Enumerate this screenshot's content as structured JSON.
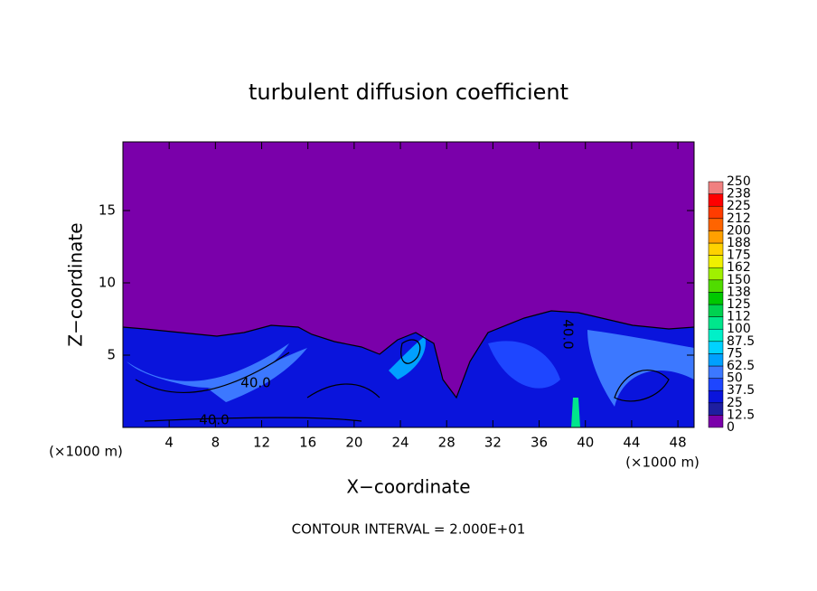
{
  "chart_data": {
    "type": "contour",
    "title": "turbulent diffusion coefficient",
    "xlabel": "X−coordinate",
    "ylabel": "Z−coordinate",
    "xunit": "(×1000 m)",
    "yunit": "(×1000 m)",
    "xlim": [
      0,
      49.4
    ],
    "ylim": [
      0,
      19.75
    ],
    "xticks": [
      4,
      8,
      12,
      16,
      20,
      24,
      28,
      32,
      36,
      40,
      44,
      48
    ],
    "yticks": [
      5,
      10,
      15
    ],
    "contour_labels": [
      "40.0",
      "40.0",
      "40.0"
    ],
    "note": "CONTOUR INTERVAL = 2.000E+01",
    "levels": [
      0,
      12.5,
      25,
      37.5,
      50,
      62.5,
      75,
      87.5,
      100,
      {
        "value": 112.5,
        "label": "112"
      },
      125,
      {
        "value": 137.5,
        "label": "138"
      },
      150,
      {
        "value": 162.5,
        "label": "162"
      },
      175,
      {
        "value": 187.5,
        "label": "188"
      },
      200,
      {
        "value": 212.5,
        "label": "212"
      },
      225,
      {
        "value": 237.5,
        "label": "238"
      },
      250
    ],
    "colors": [
      "#7a00aa",
      "#1e1ea0",
      "#0a14dc",
      "#1e46ff",
      "#3c78ff",
      "#00a0ff",
      "#00d2ff",
      "#00f0c8",
      "#00e68c",
      "#00d250",
      "#00c800",
      "#50dc00",
      "#a0f000",
      "#f0f000",
      "#ffd200",
      "#ffa000",
      "#ff6400",
      "#ff3c00",
      "#ff0000",
      "#f08080"
    ]
  }
}
